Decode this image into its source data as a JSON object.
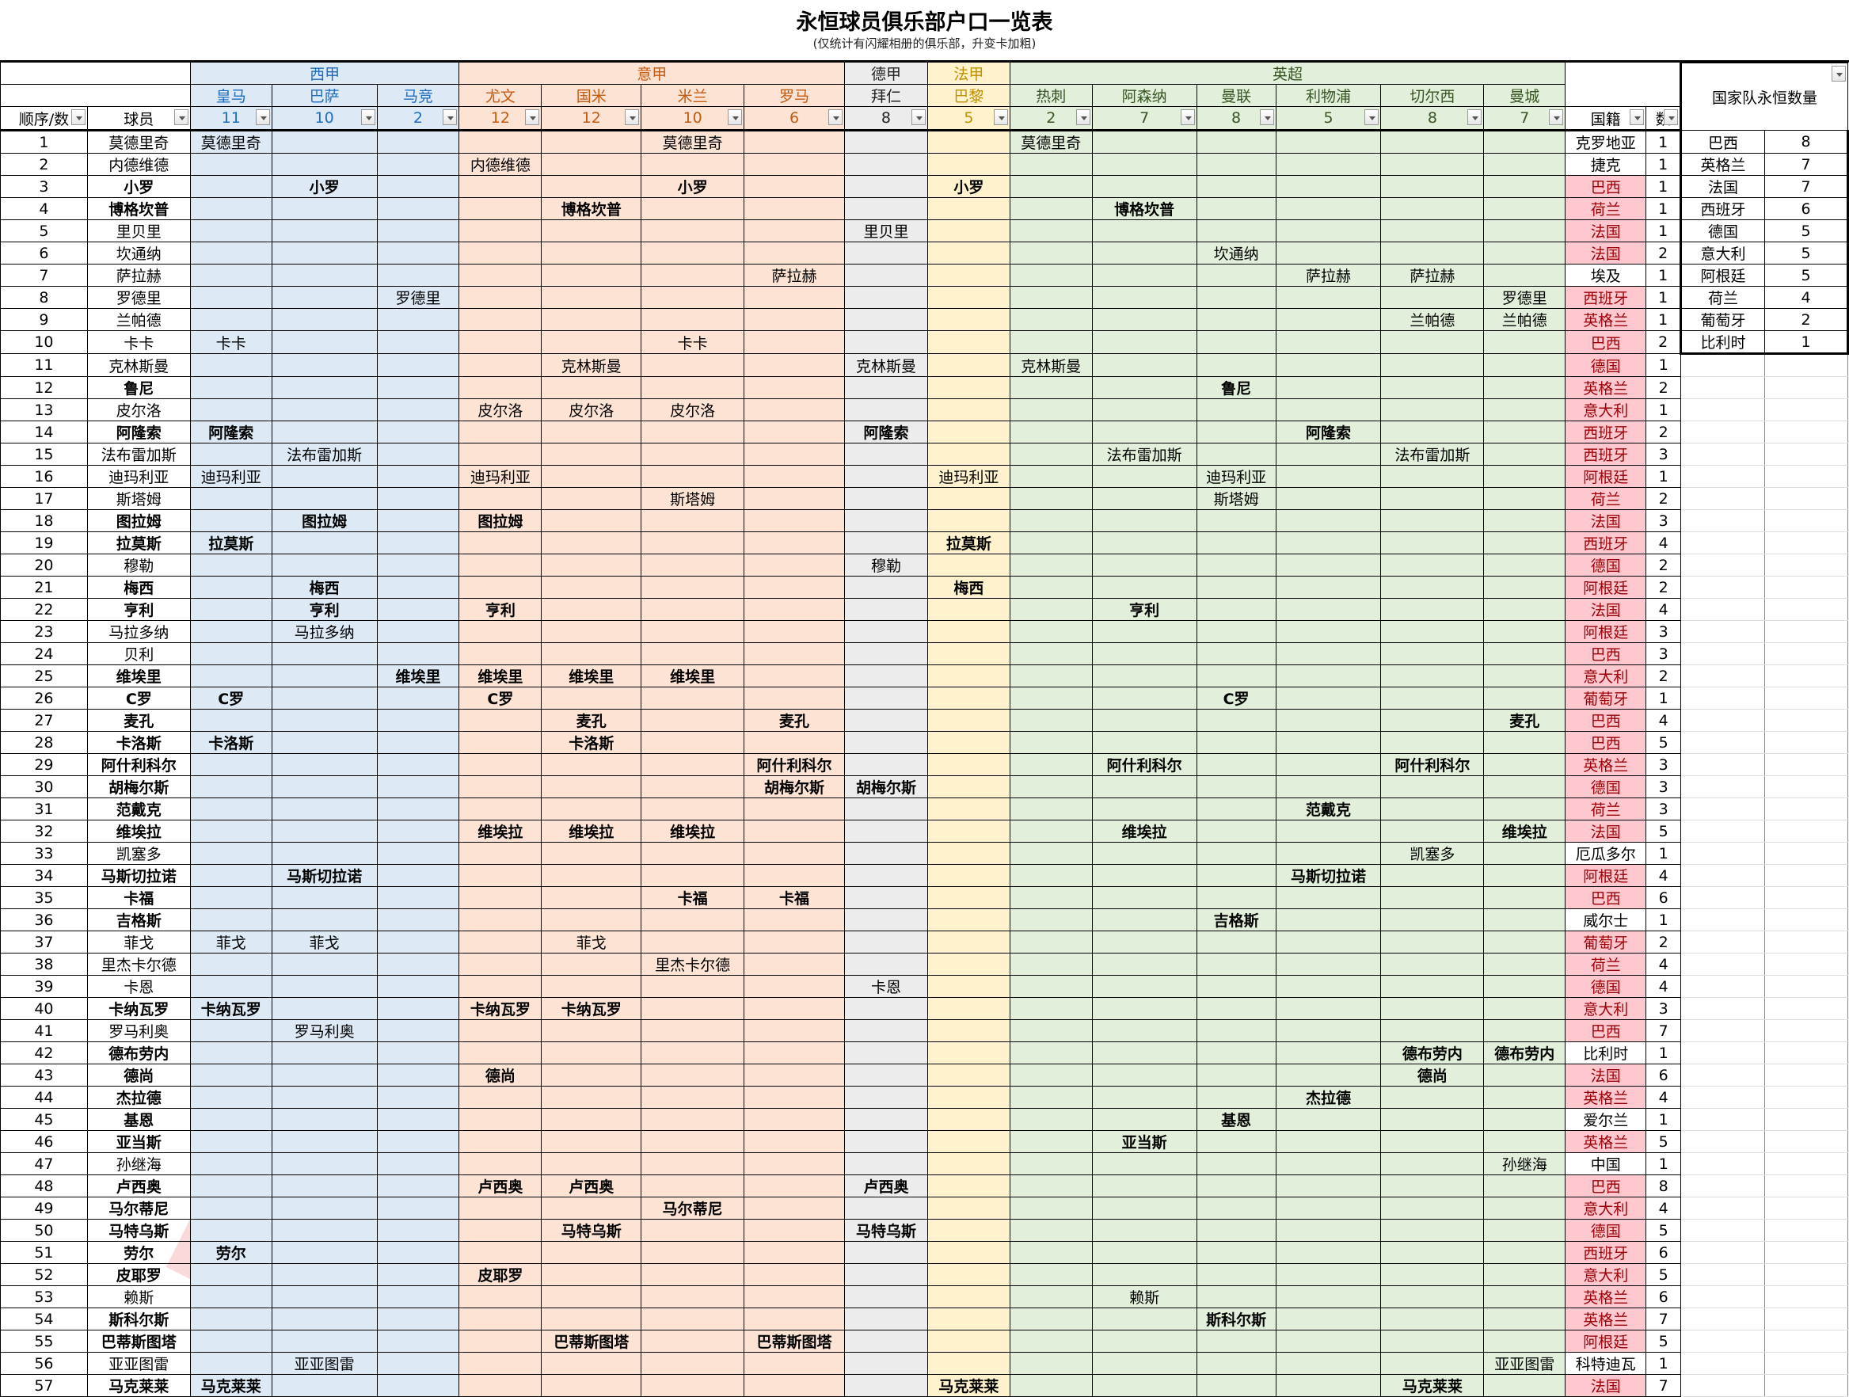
{
  "title": "永恒球员俱乐部户口一览表",
  "subtitle": "(仅统计有闪耀相册的俱乐部，升变卡加粗)",
  "leagues": [
    {
      "name": "西甲",
      "span": 3,
      "cls": "es"
    },
    {
      "name": "意甲",
      "span": 4,
      "cls": "it"
    },
    {
      "name": "德甲",
      "span": 1,
      "cls": "de"
    },
    {
      "name": "法甲",
      "span": 1,
      "cls": "fr"
    },
    {
      "name": "英超",
      "span": 6,
      "cls": "en"
    }
  ],
  "clubs": [
    {
      "name": "皇马",
      "count": "11",
      "cls": "es"
    },
    {
      "name": "巴萨",
      "count": "10",
      "cls": "es"
    },
    {
      "name": "马竞",
      "count": "2",
      "cls": "es"
    },
    {
      "name": "尤文",
      "count": "12",
      "cls": "it"
    },
    {
      "name": "国米",
      "count": "12",
      "cls": "it"
    },
    {
      "name": "米兰",
      "count": "10",
      "cls": "it"
    },
    {
      "name": "罗马",
      "count": "6",
      "cls": "it"
    },
    {
      "name": "拜仁",
      "count": "8",
      "cls": "de"
    },
    {
      "name": "巴黎",
      "count": "5",
      "cls": "fr"
    },
    {
      "name": "热刺",
      "count": "2",
      "cls": "en"
    },
    {
      "name": "阿森纳",
      "count": "7",
      "cls": "en"
    },
    {
      "name": "曼联",
      "count": "8",
      "cls": "en"
    },
    {
      "name": "利物浦",
      "count": "5",
      "cls": "en"
    },
    {
      "name": "切尔西",
      "count": "8",
      "cls": "en"
    },
    {
      "name": "曼城",
      "count": "7",
      "cls": "en"
    }
  ],
  "headers": {
    "order": "顺序/数",
    "player": "球员",
    "nationality": "国籍",
    "num": "数",
    "summary_title": "国家队永恒数量"
  },
  "rows": [
    {
      "n": "1",
      "p": "莫德里奇",
      "b": false,
      "clubs": [
        0,
        5,
        9
      ],
      "nat": "克罗地亚",
      "red": false,
      "k": "1"
    },
    {
      "n": "2",
      "p": "内德维德",
      "b": false,
      "clubs": [
        3
      ],
      "nat": "捷克",
      "red": false,
      "k": "1"
    },
    {
      "n": "3",
      "p": "小罗",
      "b": true,
      "clubs": [
        1,
        5,
        8
      ],
      "nat": "巴西",
      "red": true,
      "k": "1"
    },
    {
      "n": "4",
      "p": "博格坎普",
      "b": true,
      "clubs": [
        4,
        10
      ],
      "nat": "荷兰",
      "red": true,
      "k": "1"
    },
    {
      "n": "5",
      "p": "里贝里",
      "b": false,
      "clubs": [
        7
      ],
      "nat": "法国",
      "red": true,
      "k": "1"
    },
    {
      "n": "6",
      "p": "坎通纳",
      "b": false,
      "clubs": [
        11
      ],
      "nat": "法国",
      "red": true,
      "k": "2"
    },
    {
      "n": "7",
      "p": "萨拉赫",
      "b": false,
      "clubs": [
        6,
        12,
        13
      ],
      "nat": "埃及",
      "red": false,
      "k": "1"
    },
    {
      "n": "8",
      "p": "罗德里",
      "b": false,
      "clubs": [
        2,
        14
      ],
      "nat": "西班牙",
      "red": true,
      "k": "1"
    },
    {
      "n": "9",
      "p": "兰帕德",
      "b": false,
      "clubs": [
        13,
        14
      ],
      "nat": "英格兰",
      "red": true,
      "k": "1"
    },
    {
      "n": "10",
      "p": "卡卡",
      "b": false,
      "clubs": [
        0,
        5
      ],
      "nat": "巴西",
      "red": true,
      "k": "2"
    },
    {
      "n": "11",
      "p": "克林斯曼",
      "b": false,
      "clubs": [
        4,
        7,
        9
      ],
      "nat": "德国",
      "red": true,
      "k": "1"
    },
    {
      "n": "12",
      "p": "鲁尼",
      "b": true,
      "clubs": [
        11
      ],
      "nat": "英格兰",
      "red": true,
      "k": "2"
    },
    {
      "n": "13",
      "p": "皮尔洛",
      "b": false,
      "clubs": [
        3,
        4,
        5
      ],
      "nat": "意大利",
      "red": true,
      "k": "1"
    },
    {
      "n": "14",
      "p": "阿隆索",
      "b": true,
      "clubs": [
        0,
        7,
        12
      ],
      "nat": "西班牙",
      "red": true,
      "k": "2"
    },
    {
      "n": "15",
      "p": "法布雷加斯",
      "b": false,
      "clubs": [
        1,
        10,
        13
      ],
      "nat": "西班牙",
      "red": true,
      "k": "3"
    },
    {
      "n": "16",
      "p": "迪玛利亚",
      "b": false,
      "clubs": [
        0,
        3,
        8,
        11
      ],
      "nat": "阿根廷",
      "red": true,
      "k": "1"
    },
    {
      "n": "17",
      "p": "斯塔姆",
      "b": false,
      "clubs": [
        5,
        11
      ],
      "nat": "荷兰",
      "red": true,
      "k": "2"
    },
    {
      "n": "18",
      "p": "图拉姆",
      "b": true,
      "clubs": [
        1,
        3
      ],
      "nat": "法国",
      "red": true,
      "k": "3"
    },
    {
      "n": "19",
      "p": "拉莫斯",
      "b": true,
      "clubs": [
        0,
        8
      ],
      "nat": "西班牙",
      "red": true,
      "k": "4"
    },
    {
      "n": "20",
      "p": "穆勒",
      "b": false,
      "clubs": [
        7
      ],
      "nat": "德国",
      "red": true,
      "k": "2"
    },
    {
      "n": "21",
      "p": "梅西",
      "b": true,
      "clubs": [
        1,
        8
      ],
      "nat": "阿根廷",
      "red": true,
      "k": "2"
    },
    {
      "n": "22",
      "p": "亨利",
      "b": true,
      "clubs": [
        1,
        3,
        10
      ],
      "nat": "法国",
      "red": true,
      "k": "4"
    },
    {
      "n": "23",
      "p": "马拉多纳",
      "b": false,
      "clubs": [
        1
      ],
      "nat": "阿根廷",
      "red": true,
      "k": "3"
    },
    {
      "n": "24",
      "p": "贝利",
      "b": false,
      "clubs": [],
      "nat": "巴西",
      "red": true,
      "k": "3"
    },
    {
      "n": "25",
      "p": "维埃里",
      "b": true,
      "clubs": [
        2,
        3,
        4,
        5
      ],
      "nat": "意大利",
      "red": true,
      "k": "2"
    },
    {
      "n": "26",
      "p": "C罗",
      "b": true,
      "clubs": [
        0,
        3,
        11
      ],
      "nat": "葡萄牙",
      "red": true,
      "k": "1"
    },
    {
      "n": "27",
      "p": "麦孔",
      "b": true,
      "clubs": [
        4,
        6,
        14
      ],
      "nat": "巴西",
      "red": true,
      "k": "4"
    },
    {
      "n": "28",
      "p": "卡洛斯",
      "b": true,
      "clubs": [
        0,
        4
      ],
      "nat": "巴西",
      "red": true,
      "k": "5"
    },
    {
      "n": "29",
      "p": "阿什利科尔",
      "b": true,
      "clubs": [
        6,
        10,
        13
      ],
      "nat": "英格兰",
      "red": true,
      "k": "3"
    },
    {
      "n": "30",
      "p": "胡梅尔斯",
      "b": true,
      "clubs": [
        6,
        7
      ],
      "nat": "德国",
      "red": true,
      "k": "3"
    },
    {
      "n": "31",
      "p": "范戴克",
      "b": true,
      "clubs": [
        12
      ],
      "nat": "荷兰",
      "red": true,
      "k": "3"
    },
    {
      "n": "32",
      "p": "维埃拉",
      "b": true,
      "clubs": [
        3,
        4,
        5,
        10,
        14
      ],
      "nat": "法国",
      "red": true,
      "k": "5"
    },
    {
      "n": "33",
      "p": "凯塞多",
      "b": false,
      "clubs": [
        13
      ],
      "nat": "厄瓜多尔",
      "red": false,
      "k": "1"
    },
    {
      "n": "34",
      "p": "马斯切拉诺",
      "b": true,
      "clubs": [
        1,
        12
      ],
      "nat": "阿根廷",
      "red": true,
      "k": "4"
    },
    {
      "n": "35",
      "p": "卡福",
      "b": true,
      "clubs": [
        5,
        6
      ],
      "nat": "巴西",
      "red": true,
      "k": "6"
    },
    {
      "n": "36",
      "p": "吉格斯",
      "b": true,
      "clubs": [
        11
      ],
      "nat": "威尔士",
      "red": false,
      "k": "1"
    },
    {
      "n": "37",
      "p": "菲戈",
      "b": false,
      "clubs": [
        0,
        1,
        4
      ],
      "nat": "葡萄牙",
      "red": true,
      "k": "2"
    },
    {
      "n": "38",
      "p": "里杰卡尔德",
      "b": false,
      "clubs": [
        5
      ],
      "nat": "荷兰",
      "red": true,
      "k": "4"
    },
    {
      "n": "39",
      "p": "卡恩",
      "b": false,
      "clubs": [
        7
      ],
      "nat": "德国",
      "red": true,
      "k": "4"
    },
    {
      "n": "40",
      "p": "卡纳瓦罗",
      "b": true,
      "clubs": [
        0,
        3,
        4
      ],
      "nat": "意大利",
      "red": true,
      "k": "3"
    },
    {
      "n": "41",
      "p": "罗马利奥",
      "b": false,
      "clubs": [
        1
      ],
      "nat": "巴西",
      "red": true,
      "k": "7"
    },
    {
      "n": "42",
      "p": "德布劳内",
      "b": true,
      "clubs": [
        13,
        14
      ],
      "nat": "比利时",
      "red": false,
      "k": "1"
    },
    {
      "n": "43",
      "p": "德尚",
      "b": true,
      "clubs": [
        3,
        13
      ],
      "nat": "法国",
      "red": true,
      "k": "6"
    },
    {
      "n": "44",
      "p": "杰拉德",
      "b": true,
      "clubs": [
        12
      ],
      "nat": "英格兰",
      "red": true,
      "k": "4"
    },
    {
      "n": "45",
      "p": "基恩",
      "b": true,
      "clubs": [
        11
      ],
      "nat": "爱尔兰",
      "red": false,
      "k": "1"
    },
    {
      "n": "46",
      "p": "亚当斯",
      "b": true,
      "clubs": [
        10
      ],
      "nat": "英格兰",
      "red": true,
      "k": "5"
    },
    {
      "n": "47",
      "p": "孙继海",
      "b": false,
      "clubs": [
        14
      ],
      "nat": "中国",
      "red": false,
      "k": "1"
    },
    {
      "n": "48",
      "p": "卢西奥",
      "b": true,
      "clubs": [
        3,
        4,
        7
      ],
      "nat": "巴西",
      "red": true,
      "k": "8"
    },
    {
      "n": "49",
      "p": "马尔蒂尼",
      "b": true,
      "clubs": [
        5
      ],
      "nat": "意大利",
      "red": true,
      "k": "4"
    },
    {
      "n": "50",
      "p": "马特乌斯",
      "b": true,
      "clubs": [
        4,
        7
      ],
      "nat": "德国",
      "red": true,
      "k": "5"
    },
    {
      "n": "51",
      "p": "劳尔",
      "b": true,
      "clubs": [
        0
      ],
      "nat": "西班牙",
      "red": true,
      "k": "6"
    },
    {
      "n": "52",
      "p": "皮耶罗",
      "b": true,
      "clubs": [
        3
      ],
      "nat": "意大利",
      "red": true,
      "k": "5"
    },
    {
      "n": "53",
      "p": "赖斯",
      "b": false,
      "clubs": [
        10
      ],
      "nat": "英格兰",
      "red": true,
      "k": "6"
    },
    {
      "n": "54",
      "p": "斯科尔斯",
      "b": true,
      "clubs": [
        11
      ],
      "nat": "英格兰",
      "red": true,
      "k": "7"
    },
    {
      "n": "55",
      "p": "巴蒂斯图塔",
      "b": true,
      "clubs": [
        4,
        6
      ],
      "nat": "阿根廷",
      "red": true,
      "k": "5"
    },
    {
      "n": "56",
      "p": "亚亚图雷",
      "b": false,
      "clubs": [
        1,
        14
      ],
      "nat": "科特迪瓦",
      "red": false,
      "k": "1"
    },
    {
      "n": "57",
      "p": "马克莱莱",
      "b": true,
      "clubs": [
        0,
        8,
        13
      ],
      "nat": "法国",
      "red": true,
      "k": "7"
    }
  ],
  "summary": [
    {
      "country": "巴西",
      "count": "8"
    },
    {
      "country": "英格兰",
      "count": "7"
    },
    {
      "country": "法国",
      "count": "7"
    },
    {
      "country": "西班牙",
      "count": "6"
    },
    {
      "country": "德国",
      "count": "5"
    },
    {
      "country": "意大利",
      "count": "5"
    },
    {
      "country": "阿根廷",
      "count": "5"
    },
    {
      "country": "荷兰",
      "count": "4"
    },
    {
      "country": "葡萄牙",
      "count": "2"
    },
    {
      "country": "比利时",
      "count": "1"
    }
  ]
}
